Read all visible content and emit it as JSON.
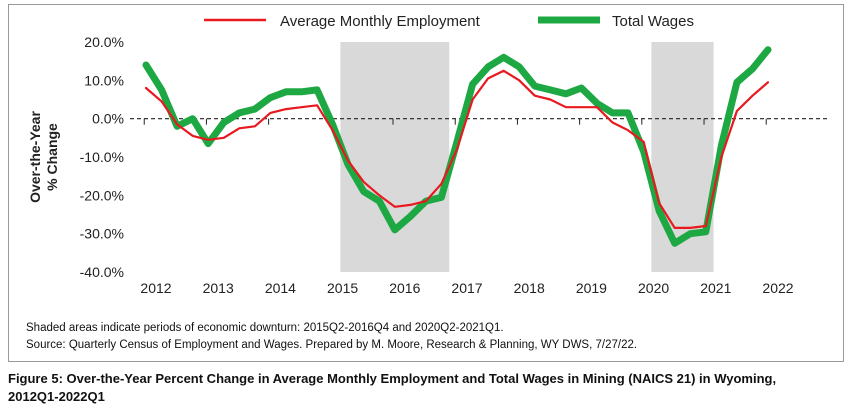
{
  "chart_data": {
    "type": "line",
    "x": [
      "2012Q1",
      "2012Q2",
      "2012Q3",
      "2012Q4",
      "2013Q1",
      "2013Q2",
      "2013Q3",
      "2013Q4",
      "2014Q1",
      "2014Q2",
      "2014Q3",
      "2014Q4",
      "2015Q1",
      "2015Q2",
      "2015Q3",
      "2015Q4",
      "2016Q1",
      "2016Q2",
      "2016Q3",
      "2016Q4",
      "2017Q1",
      "2017Q2",
      "2017Q3",
      "2017Q4",
      "2018Q1",
      "2018Q2",
      "2018Q3",
      "2018Q4",
      "2019Q1",
      "2019Q2",
      "2019Q3",
      "2019Q4",
      "2020Q1",
      "2020Q2",
      "2020Q3",
      "2020Q4",
      "2021Q1",
      "2021Q2",
      "2021Q3",
      "2021Q4",
      "2022Q1"
    ],
    "series": [
      {
        "name": "Average Monthly Employment",
        "color": "#e8191f",
        "values": [
          8.0,
          4.5,
          -1.5,
          -4.5,
          -5.5,
          -5.0,
          -2.5,
          -2.0,
          1.5,
          2.5,
          3.0,
          3.5,
          -3.0,
          -11.0,
          -16.5,
          -20.0,
          -23.0,
          -22.5,
          -21.5,
          -17.0,
          -8.0,
          5.0,
          10.5,
          12.5,
          10.0,
          6.0,
          5.0,
          3.0,
          3.0,
          3.0,
          -1.0,
          -3.0,
          -6.0,
          -22.0,
          -28.5,
          -28.5,
          -28.0,
          -10.0,
          2.0,
          6.0,
          9.5
        ]
      },
      {
        "name": "Total Wages",
        "color": "#1ea843",
        "values": [
          14.0,
          7.5,
          -2.0,
          0.0,
          -6.5,
          -1.0,
          1.5,
          2.5,
          5.5,
          7.0,
          7.0,
          7.5,
          -1.5,
          -12.0,
          -19.0,
          -21.5,
          -29.0,
          -25.5,
          -21.5,
          -20.5,
          -6.0,
          9.0,
          13.5,
          16.0,
          13.5,
          8.5,
          7.5,
          6.5,
          8.0,
          4.0,
          1.5,
          1.5,
          -8.5,
          -24.0,
          -32.5,
          -30.0,
          -29.5,
          -7.0,
          9.5,
          13.0,
          18.0
        ]
      }
    ],
    "ylim": [
      -40,
      20
    ],
    "yticks": [
      "20.0%",
      "10.0%",
      "0.0%",
      "-10.0%",
      "-20.0%",
      "-30.0%",
      "-40.0%"
    ],
    "ytick_values": [
      20,
      10,
      0,
      -10,
      -20,
      -30,
      -40
    ],
    "xticks": [
      "2012",
      "2013",
      "2014",
      "2015",
      "2016",
      "2017",
      "2018",
      "2019",
      "2020",
      "2021",
      "2022"
    ],
    "shaded_periods": [
      {
        "start": "2015Q2",
        "end": "2016Q4"
      },
      {
        "start": "2020Q2",
        "end": "2021Q1"
      }
    ],
    "shade_color": "#d9d9d9",
    "ylabel_line1": "Over-the-Year",
    "ylabel_line2": "% Change",
    "legend_position": "top"
  },
  "notes": {
    "line1": "Shaded areas indicate periods of economic downturn: 2015Q2-2016Q4 and 2020Q2-2021Q1.",
    "line2": "Source: Quarterly Census of Employment and Wages. Prepared by M. Moore, Research & Planning, WY DWS, 7/27/22."
  },
  "caption": "Figure 5: Over-the-Year Percent Change in Average Monthly Employment and Total Wages in Mining (NAICS 21) in Wyoming, 2012Q1-2022Q1"
}
